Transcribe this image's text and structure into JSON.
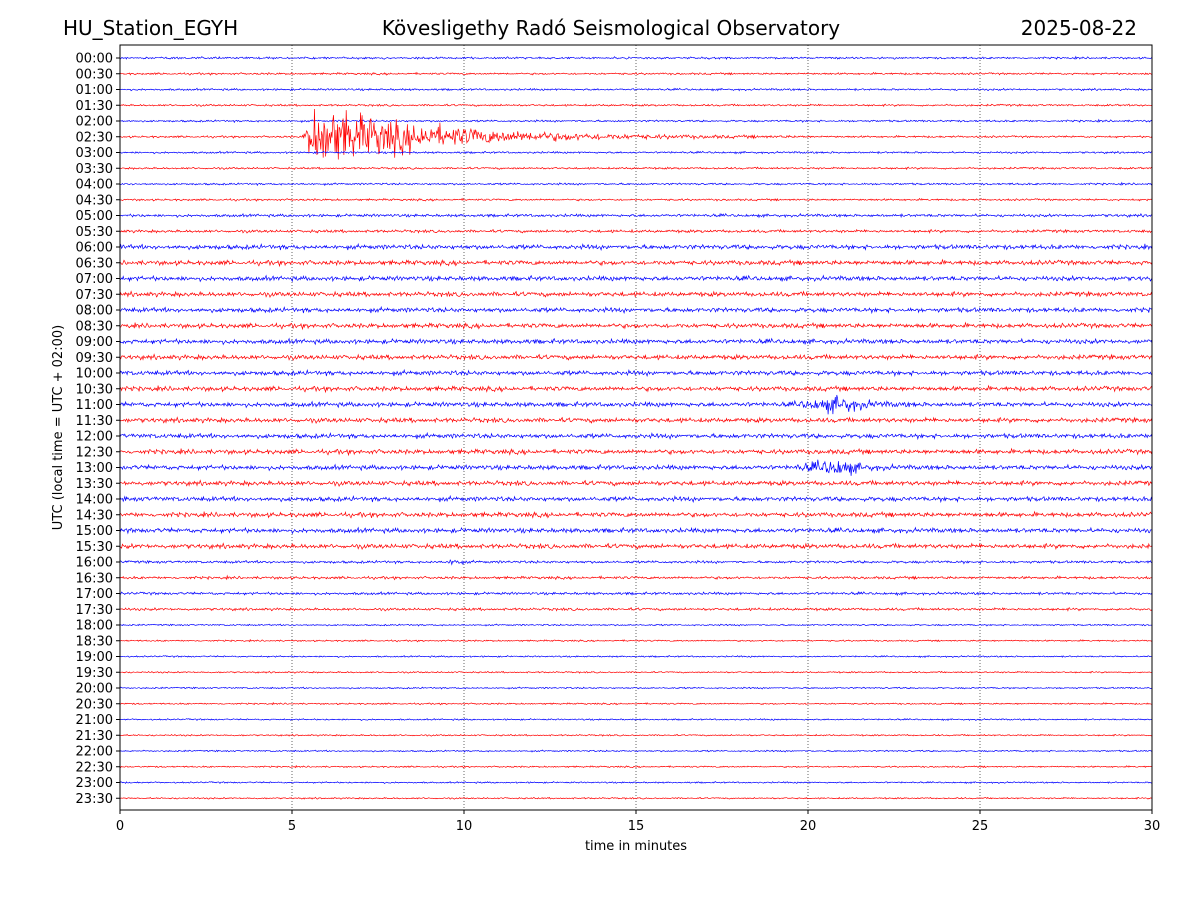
{
  "header": {
    "left": "HU_Station_EGYH",
    "center": "Kövesligethy Radó Seismological Observatory",
    "right": "2025-08-22"
  },
  "colors": {
    "trace_a": "#0000ff",
    "trace_b": "#ff0000",
    "grid": "#000000",
    "axis": "#000000"
  },
  "chart_data": {
    "type": "line",
    "title": "Kövesligethy Radó Seismological Observatory",
    "xlabel": "time in minutes",
    "ylabel": "UTC (local time = UTC + 02:00)",
    "xlim": [
      0,
      30
    ],
    "xticks": [
      0,
      5,
      10,
      15,
      20,
      25,
      30
    ],
    "vertical_grid_at": [
      5,
      10,
      15,
      20,
      25
    ],
    "grid": "vertical dotted",
    "legend": "none",
    "rows": [
      "00:00",
      "00:30",
      "01:00",
      "01:30",
      "02:00",
      "02:30",
      "03:00",
      "03:30",
      "04:00",
      "04:30",
      "05:00",
      "05:30",
      "06:00",
      "06:30",
      "07:00",
      "07:30",
      "08:00",
      "08:30",
      "09:00",
      "09:30",
      "10:00",
      "10:30",
      "11:00",
      "11:30",
      "12:00",
      "12:30",
      "13:00",
      "13:30",
      "14:00",
      "14:30",
      "15:00",
      "15:30",
      "16:00",
      "16:30",
      "17:00",
      "17:30",
      "18:00",
      "18:30",
      "19:00",
      "19:30",
      "20:00",
      "20:30",
      "21:00",
      "21:30",
      "22:00",
      "22:30",
      "23:00",
      "23:30"
    ],
    "row_colors_cycle": [
      "blue",
      "red"
    ],
    "events": [
      {
        "row": "02:30",
        "start_min": 5.3,
        "peak_min": 5.7,
        "end_min": 20.0,
        "strength": "strong"
      },
      {
        "row": "11:00",
        "start_min": 19.5,
        "peak_min": 21.0,
        "end_min": 23.5,
        "strength": "moderate"
      },
      {
        "row": "13:00",
        "start_min": 19.5,
        "peak_min": 21.0,
        "end_min": 23.0,
        "strength": "moderate"
      },
      {
        "row": "16:00",
        "start_min": 9.4,
        "peak_min": 9.8,
        "end_min": 10.3,
        "strength": "weak"
      }
    ]
  }
}
